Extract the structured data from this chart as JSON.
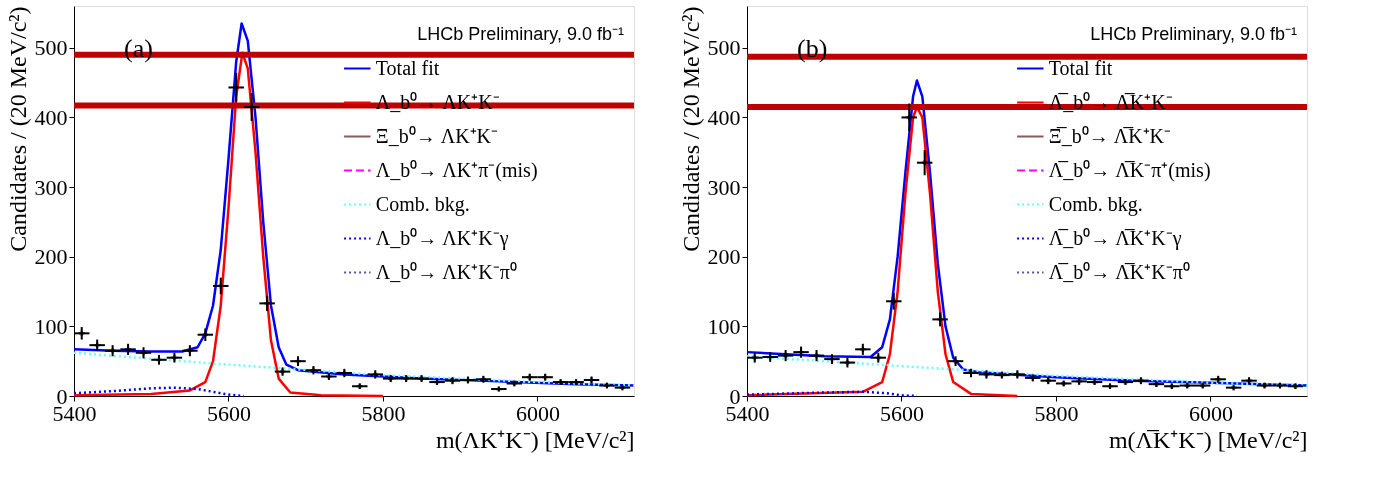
{
  "chart_data": [
    {
      "type": "line",
      "xlabel": "m(ΛK⁺K⁻) [MeV/c²]",
      "ylabel": "Candidates / (20 MeV/c²)",
      "annotations": [
        "(a)",
        "LHCb Preliminary, 9.0 fb⁻¹"
      ],
      "xlim": [
        5400,
        6125
      ],
      "xticks": [
        5400,
        5600,
        5800,
        6000
      ],
      "ylim": [
        0,
        560
      ],
      "yticks": [
        0,
        100,
        200,
        300,
        400,
        500
      ],
      "legend": "top right",
      "grid": false,
      "ref_lines": [
        {
          "axis": "y",
          "value": 490,
          "color": "#c00000"
        },
        {
          "axis": "y",
          "value": 417,
          "color": "#c00000"
        }
      ],
      "series": [
        {
          "type": "scatter",
          "marker": "cross",
          "color": "#000000",
          "x": [
            5410,
            5430,
            5450,
            5470,
            5490,
            5510,
            5530,
            5550,
            5570,
            5590,
            5610,
            5630,
            5650,
            5670,
            5690,
            5710,
            5730,
            5750,
            5770,
            5790,
            5810,
            5830,
            5850,
            5870,
            5890,
            5910,
            5930,
            5950,
            5970,
            5990,
            6010,
            6030,
            6050,
            6070,
            6090,
            6110
          ],
          "values": [
            90,
            73,
            65,
            67,
            62,
            52,
            55,
            65,
            88,
            158,
            443,
            415,
            133,
            35,
            50,
            37,
            28,
            33,
            14,
            31,
            25,
            25,
            25,
            20,
            22,
            23,
            24,
            10,
            18,
            27,
            27,
            20,
            20,
            23,
            15,
            12
          ],
          "errors": [
            9,
            8,
            8,
            8,
            8,
            7,
            7,
            8,
            9,
            12,
            21,
            20,
            11,
            6,
            7,
            6,
            5,
            6,
            4,
            6,
            5,
            5,
            5,
            4,
            5,
            5,
            5,
            3,
            4,
            5,
            5,
            4,
            4,
            5,
            4,
            3
          ],
          "xerrors": [
            10,
            10,
            10,
            10,
            10,
            10,
            10,
            10,
            10,
            10,
            10,
            10,
            10,
            10,
            10,
            10,
            10,
            10,
            10,
            10,
            10,
            10,
            10,
            10,
            10,
            10,
            10,
            10,
            10,
            10,
            10,
            10,
            10,
            10,
            10,
            10
          ]
        },
        {
          "name": "Total fit",
          "color": "#0000ff",
          "line_style": "solid",
          "x": [
            5400,
            5450,
            5500,
            5540,
            5560,
            5570,
            5580,
            5590,
            5600,
            5610,
            5617,
            5625,
            5635,
            5645,
            5655,
            5665,
            5675,
            5690,
            5750,
            5850,
            5950,
            6050,
            6125
          ],
          "values": [
            67,
            65,
            64,
            64,
            70,
            90,
            130,
            210,
            340,
            480,
            535,
            510,
            400,
            250,
            130,
            70,
            45,
            37,
            31,
            25,
            21,
            17,
            15
          ]
        },
        {
          "name": "Λ_b⁰→ ΛK⁺K⁻",
          "color": "#ff0000",
          "line_style": "solid",
          "x": [
            5400,
            5500,
            5550,
            5570,
            5580,
            5590,
            5600,
            5610,
            5618,
            5625,
            5635,
            5645,
            5655,
            5665,
            5680,
            5720,
            5800
          ],
          "values": [
            1,
            3,
            8,
            20,
            50,
            130,
            270,
            430,
            493,
            470,
            350,
            200,
            80,
            25,
            5,
            1,
            0
          ]
        },
        {
          "name": "Ξ_b⁰→ ΛK⁺K⁻",
          "color": "#8b5a5a",
          "line_style": "solid",
          "values": [
            null
          ]
        },
        {
          "name": "Λ_b⁰→ ΛK⁺π⁻(mis)",
          "color": "#ff00ff",
          "line_style": "dashed",
          "values": [
            null
          ]
        },
        {
          "name": "Comb. bkg.",
          "color": "#66ffff",
          "line_style": "dotted",
          "x": [
            5400,
            5600,
            5800,
            6000,
            6125
          ],
          "values": [
            62,
            45,
            30,
            20,
            15
          ]
        },
        {
          "name": "Λ_b⁰→ ΛK⁺K⁻γ",
          "color": "#0000ff",
          "line_style": "dotted",
          "x": [
            5400,
            5450,
            5500,
            5530,
            5560,
            5580,
            5600,
            5620
          ],
          "values": [
            4,
            7,
            11,
            12,
            10,
            6,
            2,
            0
          ]
        },
        {
          "name": "Λ_b⁰→ ΛK⁺K⁻π⁰",
          "color": "#5555aa",
          "line_style": "dotted",
          "values": [
            null
          ]
        }
      ]
    },
    {
      "type": "line",
      "xlabel": "m(Λ̅K⁺K⁻) [MeV/c²]",
      "ylabel": "Candidates / (20 MeV/c²)",
      "annotations": [
        "(b)",
        "LHCb Preliminary, 9.0 fb⁻¹"
      ],
      "xlim": [
        5400,
        6125
      ],
      "xticks": [
        5400,
        5600,
        5800,
        6000
      ],
      "ylim": [
        0,
        560
      ],
      "yticks": [
        0,
        100,
        200,
        300,
        400,
        500
      ],
      "legend": "top right",
      "grid": false,
      "ref_lines": [
        {
          "axis": "y",
          "value": 487,
          "color": "#c00000"
        },
        {
          "axis": "y",
          "value": 415,
          "color": "#c00000"
        }
      ],
      "series": [
        {
          "type": "scatter",
          "marker": "cross",
          "color": "#000000",
          "x": [
            5410,
            5430,
            5450,
            5470,
            5490,
            5510,
            5530,
            5550,
            5570,
            5590,
            5610,
            5630,
            5650,
            5670,
            5690,
            5710,
            5730,
            5750,
            5770,
            5790,
            5810,
            5830,
            5850,
            5870,
            5890,
            5910,
            5930,
            5950,
            5970,
            5990,
            6010,
            6030,
            6050,
            6070,
            6090,
            6110
          ],
          "values": [
            55,
            56,
            58,
            63,
            58,
            53,
            48,
            67,
            55,
            136,
            400,
            335,
            110,
            50,
            33,
            31,
            30,
            31,
            26,
            22,
            18,
            21,
            20,
            14,
            20,
            22,
            17,
            14,
            15,
            15,
            24,
            12,
            22,
            15,
            15,
            14
          ],
          "errors": [
            7,
            7,
            8,
            8,
            8,
            7,
            7,
            8,
            7,
            12,
            20,
            18,
            10,
            7,
            6,
            6,
            5,
            6,
            5,
            5,
            4,
            5,
            4,
            4,
            4,
            5,
            4,
            4,
            4,
            4,
            5,
            3,
            5,
            4,
            4,
            4
          ],
          "xerrors": [
            10,
            10,
            10,
            10,
            10,
            10,
            10,
            10,
            10,
            10,
            10,
            10,
            10,
            10,
            10,
            10,
            10,
            10,
            10,
            10,
            10,
            10,
            10,
            10,
            10,
            10,
            10,
            10,
            10,
            10,
            10,
            10,
            10,
            10,
            10,
            10
          ]
        },
        {
          "name": "Total fit",
          "color": "#0000ff",
          "line_style": "solid",
          "x": [
            5400,
            5450,
            5500,
            5560,
            5575,
            5585,
            5595,
            5605,
            5615,
            5620,
            5627,
            5637,
            5647,
            5657,
            5667,
            5680,
            5700,
            5800,
            5900,
            6000,
            6125
          ],
          "values": [
            63,
            60,
            57,
            56,
            70,
            110,
            200,
            320,
            430,
            453,
            430,
            320,
            190,
            100,
            55,
            38,
            34,
            27,
            22,
            19,
            15
          ]
        },
        {
          "name": "Λ̅_b⁰→ Λ̅K⁺K⁻",
          "color": "#ff0000",
          "line_style": "solid",
          "x": [
            5400,
            5550,
            5575,
            5585,
            5595,
            5605,
            5615,
            5620,
            5627,
            5637,
            5647,
            5657,
            5667,
            5690,
            5750
          ],
          "values": [
            1,
            6,
            20,
            60,
            150,
            290,
            400,
            415,
            400,
            290,
            150,
            60,
            20,
            3,
            0
          ]
        },
        {
          "name": "Ξ̅_b⁰→ Λ̅K⁺K⁻",
          "color": "#8b5a5a",
          "line_style": "solid",
          "values": [
            null
          ]
        },
        {
          "name": "Λ̅_b⁰→ Λ̅K⁻π⁺(mis)",
          "color": "#ff00ff",
          "line_style": "dashed",
          "values": [
            null
          ]
        },
        {
          "name": "Comb. bkg.",
          "color": "#66ffff",
          "line_style": "dotted",
          "x": [
            5400,
            5600,
            5800,
            6000,
            6125
          ],
          "values": [
            57,
            43,
            29,
            19,
            15
          ]
        },
        {
          "name": "Λ̅_b⁰→ Λ̅K⁺K⁻γ",
          "color": "#0000ff",
          "line_style": "dotted",
          "x": [
            5400,
            5500,
            5550,
            5580,
            5600,
            5620
          ],
          "values": [
            2,
            5,
            6,
            4,
            1,
            0
          ]
        },
        {
          "name": "Λ̅_b⁰→ Λ̅K⁺K⁻π⁰",
          "color": "#5555aa",
          "line_style": "dotted",
          "values": [
            null
          ]
        }
      ]
    }
  ]
}
